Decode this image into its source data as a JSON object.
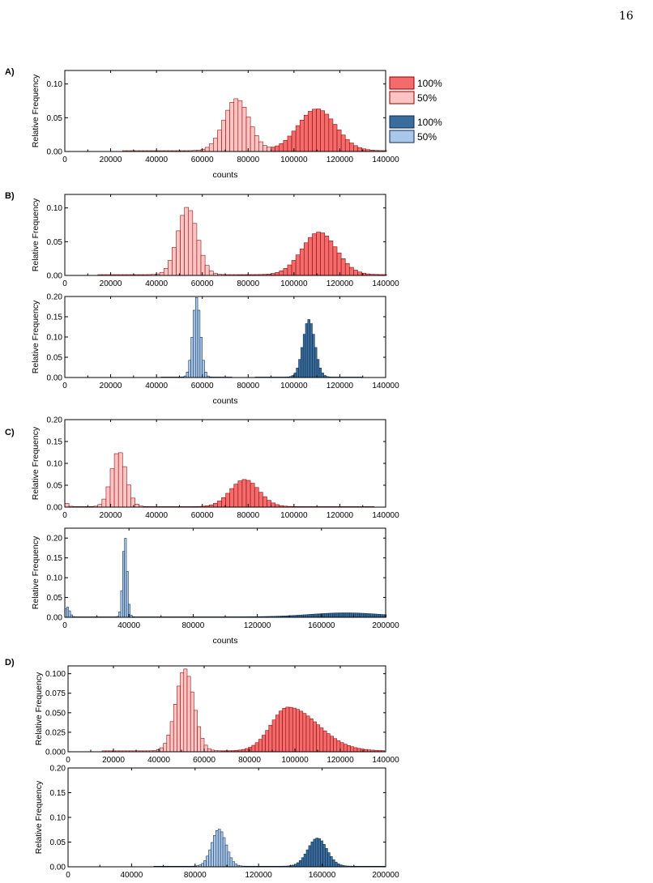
{
  "page_number": "16",
  "colors": {
    "red_100": "#f36b6b",
    "red_50": "#fcc3c3",
    "red_edge": "#8b0000",
    "blue_100": "#3b6d9c",
    "blue_50": "#a9c8e9",
    "blue_edge": "#0d2a4d"
  },
  "legend": {
    "items": [
      {
        "label": "100%",
        "color": "#f36b6b",
        "edge": "#8b0000"
      },
      {
        "label": "50%",
        "color": "#fcc3c3",
        "edge": "#8b0000"
      },
      {
        "label": "100%",
        "color": "#3b6d9c",
        "edge": "#0d2a4d"
      },
      {
        "label": "50%",
        "color": "#a9c8e9",
        "edge": "#0d2a4d"
      }
    ]
  },
  "chart_data": [
    {
      "panel": "A)",
      "type": "bar",
      "xlabel": "counts",
      "ylabel": "Relative Frequency",
      "xlim": [
        0,
        140000
      ],
      "xticks": [
        0,
        20000,
        40000,
        60000,
        80000,
        100000,
        120000,
        140000
      ],
      "ylim": [
        0,
        0.12
      ],
      "yticks": [
        0,
        0.05,
        0.1
      ],
      "ytick_labels": [
        "0.00",
        "0.05",
        "0.10"
      ],
      "bin_width": 1800,
      "color_scheme": "red",
      "series": [
        {
          "name": "50%",
          "peak_x": 75000,
          "peak_y": 0.077,
          "sigma": 5500
        },
        {
          "name": "100%",
          "peak_x": 110000,
          "peak_y": 0.062,
          "sigma": 8200
        }
      ]
    },
    {
      "panel": "B)",
      "type": "bar",
      "xlabel": "",
      "ylabel": "Relative Frequency",
      "xlim": [
        0,
        140000
      ],
      "xticks": [
        0,
        20000,
        40000,
        60000,
        80000,
        100000,
        120000,
        140000
      ],
      "ylim": [
        0,
        0.12
      ],
      "yticks": [
        0,
        0.05,
        0.1
      ],
      "ytick_labels": [
        "0.00",
        "0.05",
        "0.10"
      ],
      "bin_width": 1800,
      "color_scheme": "red",
      "series": [
        {
          "name": "50%",
          "peak_x": 53500,
          "peak_y": 0.1,
          "sigma": 4300
        },
        {
          "name": "100%",
          "peak_x": 111000,
          "peak_y": 0.063,
          "sigma": 7500
        }
      ]
    },
    {
      "panel": "",
      "type": "bar",
      "xlabel": "counts",
      "ylabel": "Relative Frequency",
      "xlim": [
        0,
        140000
      ],
      "xticks": [
        0,
        20000,
        40000,
        60000,
        80000,
        100000,
        120000,
        140000
      ],
      "ylim": [
        0,
        0.2
      ],
      "yticks": [
        0,
        0.05,
        0.1,
        0.15,
        0.2
      ],
      "ytick_labels": [
        "0.00",
        "0.05",
        "0.10",
        "0.15",
        "0.20"
      ],
      "bin_width": 1000,
      "color_scheme": "blue",
      "series": [
        {
          "name": "50%",
          "peak_x": 57500,
          "peak_y": 0.196,
          "sigma": 1700
        },
        {
          "name": "100%",
          "peak_x": 106500,
          "peak_y": 0.142,
          "sigma": 2600
        }
      ]
    },
    {
      "panel": "C)",
      "type": "bar",
      "xlabel": "",
      "ylabel": "Relative Frequency",
      "xlim": [
        0,
        140000
      ],
      "xticks": [
        0,
        20000,
        40000,
        60000,
        80000,
        100000,
        120000,
        140000
      ],
      "ylim": [
        0,
        0.2
      ],
      "yticks": [
        0,
        0.05,
        0.1,
        0.15,
        0.2
      ],
      "ytick_labels": [
        "0.00",
        "0.05",
        "0.10",
        "0.15",
        "0.20"
      ],
      "bin_width": 1800,
      "color_scheme": "red",
      "series": [
        {
          "name": "50%",
          "peak_x": 23500,
          "peak_y": 0.127,
          "sigma": 3200
        },
        {
          "name": "100%",
          "peak_x": 78500,
          "peak_y": 0.062,
          "sigma": 6200
        },
        {
          "name": "50%",
          "peak_x": 0,
          "peak_y": 0.01,
          "sigma": 1200
        }
      ]
    },
    {
      "panel": "",
      "type": "bar",
      "xlabel": "counts",
      "ylabel": "Relative Frequency",
      "xlim": [
        0,
        200000
      ],
      "xticks": [
        0,
        40000,
        80000,
        120000,
        160000,
        200000
      ],
      "ylim": [
        0,
        0.225
      ],
      "yticks": [
        0,
        0.05,
        0.1,
        0.15,
        0.2
      ],
      "ytick_labels": [
        "0.00",
        "0.05",
        "0.10",
        "0.15",
        "0.20"
      ],
      "bin_width": 1200,
      "color_scheme": "blue",
      "series": [
        {
          "name": "50%",
          "peak_x": 37500,
          "peak_y": 0.203,
          "sigma": 1400
        },
        {
          "name": "100%",
          "peak_x": 175000,
          "peak_y": 0.01,
          "sigma": 22000
        },
        {
          "name": "50%",
          "peak_x": 1500,
          "peak_y": 0.025,
          "sigma": 1500
        }
      ]
    },
    {
      "panel": "D)",
      "type": "bar",
      "xlabel": "",
      "ylabel": "Relative Frequency",
      "xlim": [
        0,
        140000
      ],
      "xticks": [
        0,
        20000,
        40000,
        60000,
        80000,
        100000,
        120000,
        140000
      ],
      "ylim": [
        0,
        0.11
      ],
      "yticks": [
        0,
        0.025,
        0.05,
        0.075,
        0.1
      ],
      "ytick_labels": [
        "0.000",
        "0.025",
        "0.050",
        "0.075",
        "0.100"
      ],
      "bin_width": 1500,
      "color_scheme": "red",
      "series": [
        {
          "name": "50%",
          "peak_x": 51500,
          "peak_y": 0.105,
          "sigma": 4000
        },
        {
          "name": "100%",
          "peak_x": 97000,
          "peak_y": 0.056,
          "sigma": 7500,
          "tail_sigma": 13000
        }
      ]
    },
    {
      "panel": "",
      "type": "bar",
      "xlabel": "counts",
      "ylabel": "Relative Frequency",
      "xlim": [
        0,
        200000
      ],
      "xticks": [
        0,
        40000,
        80000,
        120000,
        160000,
        200000
      ],
      "ylim": [
        0,
        0.2
      ],
      "yticks": [
        0,
        0.05,
        0.1,
        0.15,
        0.2
      ],
      "ytick_labels": [
        "0.00",
        "0.05",
        "0.10",
        "0.15",
        "0.20"
      ],
      "bin_width": 1500,
      "color_scheme": "blue",
      "series": [
        {
          "name": "50%",
          "peak_x": 95000,
          "peak_y": 0.075,
          "sigma": 4500
        },
        {
          "name": "100%",
          "peak_x": 157000,
          "peak_y": 0.057,
          "sigma": 6000
        }
      ]
    }
  ]
}
